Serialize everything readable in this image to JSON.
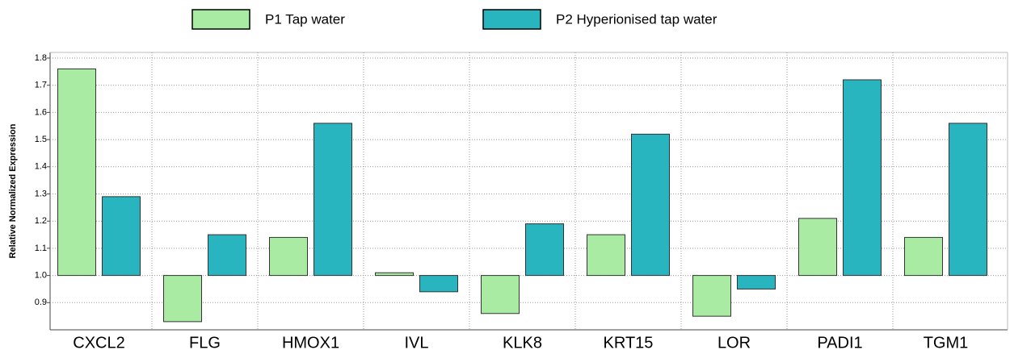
{
  "chart_data": {
    "type": "bar",
    "y_label": "Relative Normalized Expression",
    "categories": [
      "CXCL2",
      "FLG",
      "HMOX1",
      "IVL",
      "KLK8",
      "KRT15",
      "LOR",
      "PADI1",
      "TGM1"
    ],
    "series": [
      {
        "name": "P1 Tap water",
        "color": "#a9eba3",
        "values": [
          1.76,
          0.83,
          1.14,
          1.01,
          0.86,
          1.15,
          0.85,
          1.21,
          1.14
        ]
      },
      {
        "name": "P2 Hyperionised tap water",
        "color": "#29b5bf",
        "values": [
          1.29,
          1.15,
          1.56,
          0.94,
          1.19,
          1.52,
          0.95,
          1.72,
          1.56
        ]
      }
    ],
    "baseline": 1,
    "ylim": [
      0.8,
      1.8
    ],
    "yticks": [
      0.9,
      {
        "value": 1.0,
        "label": "1.0"
      },
      1.1,
      1.2,
      1.3,
      1.4,
      1.5,
      1.6,
      1.7,
      1.8
    ],
    "grid": true
  }
}
